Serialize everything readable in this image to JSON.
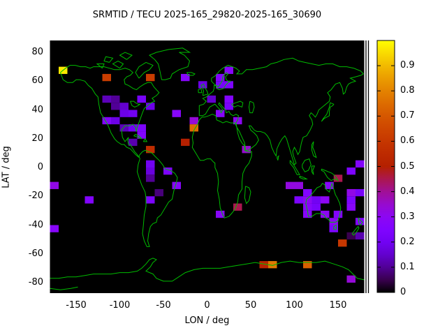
{
  "title": "SRMTID / TECU 2025-165_29820-2025-165_30690",
  "axes": {
    "x_label": "LON / deg",
    "y_label": "LAT / deg",
    "x_ticks": [
      -150,
      -100,
      -50,
      0,
      50,
      100,
      150
    ],
    "y_ticks": [
      80,
      60,
      40,
      20,
      0,
      -20,
      -40,
      -60,
      -80
    ],
    "xlim": [
      -180,
      180
    ],
    "ylim": [
      -88,
      88
    ]
  },
  "colorbar": {
    "min": 0,
    "max": 1,
    "tick_values": [
      0,
      0.1,
      0.2,
      0.3,
      0.4,
      0.5,
      0.6,
      0.7,
      0.8,
      0.9
    ],
    "tick_labels": [
      "0",
      "0.1",
      "0.2",
      "0.3",
      "0.4",
      "0.5",
      "0.6",
      "0.7",
      "0.8",
      "0.9"
    ]
  },
  "colors": {
    "background": "#ffffff",
    "plot_bg": "#000000",
    "coastline": "#00bb00",
    "text": "#000000"
  },
  "chart_data": {
    "type": "heatmap",
    "title": "SRMTID / TECU 2025-165_29820-2025-165_30690",
    "xlabel": "LON / deg",
    "ylabel": "LAT / deg",
    "xlim": [
      -180,
      180
    ],
    "ylim": [
      -90,
      90
    ],
    "legend_position": "right-colorbar",
    "grid": false,
    "basemap": "world-coastlines",
    "cell_deg": {
      "lon": 10,
      "lat": 5
    },
    "palette": "gnuplot default pm3d: R=sqrt(v), G=v^3, B=max(0,sin(2*pi*v))",
    "points": [
      {
        "lon": -165,
        "lat": 67.5,
        "v": 0.97
      },
      {
        "lon": -115,
        "lat": 62.5,
        "v": 0.62
      },
      {
        "lon": -65,
        "lat": 62.5,
        "v": 0.62
      },
      {
        "lon": -25,
        "lat": 62.5,
        "v": 0.28
      },
      {
        "lon": -115,
        "lat": 47.5,
        "v": 0.13
      },
      {
        "lon": -105,
        "lat": 47.5,
        "v": 0.1
      },
      {
        "lon": -75,
        "lat": 47.5,
        "v": 0.22
      },
      {
        "lon": -105,
        "lat": 42.5,
        "v": 0.1
      },
      {
        "lon": -95,
        "lat": 42.5,
        "v": 0.15
      },
      {
        "lon": -65,
        "lat": 42.5,
        "v": 0.18
      },
      {
        "lon": -95,
        "lat": 37.5,
        "v": 0.18
      },
      {
        "lon": -85,
        "lat": 37.5,
        "v": 0.2
      },
      {
        "lon": -115,
        "lat": 32.5,
        "v": 0.26
      },
      {
        "lon": -105,
        "lat": 32.5,
        "v": 0.18
      },
      {
        "lon": -95,
        "lat": 27.5,
        "v": 0.13
      },
      {
        "lon": -85,
        "lat": 27.5,
        "v": 0.2
      },
      {
        "lon": -75,
        "lat": 27.5,
        "v": 0.24
      },
      {
        "lon": -75,
        "lat": 22.5,
        "v": 0.26
      },
      {
        "lon": -85,
        "lat": 17.5,
        "v": 0.12
      },
      {
        "lon": -65,
        "lat": 12.5,
        "v": 0.56
      },
      {
        "lon": -65,
        "lat": 2.5,
        "v": 0.2
      },
      {
        "lon": -65,
        "lat": -2.5,
        "v": 0.17
      },
      {
        "lon": -65,
        "lat": -7.5,
        "v": 0.1
      },
      {
        "lon": -45,
        "lat": -2.5,
        "v": 0.24
      },
      {
        "lon": -35,
        "lat": -12.5,
        "v": 0.28
      },
      {
        "lon": -55,
        "lat": -17.5,
        "v": 0.08
      },
      {
        "lon": -65,
        "lat": -22.5,
        "v": 0.24
      },
      {
        "lon": -175,
        "lat": -12.5,
        "v": 0.32
      },
      {
        "lon": -135,
        "lat": -22.5,
        "v": 0.26
      },
      {
        "lon": -175,
        "lat": -42.5,
        "v": 0.28
      },
      {
        "lon": 25,
        "lat": 67.5,
        "v": 0.28
      },
      {
        "lon": 15,
        "lat": 62.5,
        "v": 0.26
      },
      {
        "lon": 15,
        "lat": 57.5,
        "v": 0.22
      },
      {
        "lon": 25,
        "lat": 57.5,
        "v": 0.24
      },
      {
        "lon": -5,
        "lat": 57.5,
        "v": 0.18
      },
      {
        "lon": 5,
        "lat": 47.5,
        "v": 0.15
      },
      {
        "lon": 25,
        "lat": 47.5,
        "v": 0.26
      },
      {
        "lon": 25,
        "lat": 42.5,
        "v": 0.22
      },
      {
        "lon": 15,
        "lat": 37.5,
        "v": 0.28
      },
      {
        "lon": 35,
        "lat": 32.5,
        "v": 0.3
      },
      {
        "lon": -35,
        "lat": 37.5,
        "v": 0.28
      },
      {
        "lon": -15,
        "lat": 32.5,
        "v": 0.34
      },
      {
        "lon": -15,
        "lat": 27.5,
        "v": 0.75
      },
      {
        "lon": -25,
        "lat": 17.5,
        "v": 0.5
      },
      {
        "lon": 45,
        "lat": 12.5,
        "v": 0.35
      },
      {
        "lon": 35,
        "lat": -27.5,
        "v": 0.45
      },
      {
        "lon": 15,
        "lat": -32.5,
        "v": 0.28
      },
      {
        "lon": 95,
        "lat": -12.5,
        "v": 0.33
      },
      {
        "lon": 105,
        "lat": -12.5,
        "v": 0.33
      },
      {
        "lon": 140,
        "lat": -12.5,
        "v": 0.28
      },
      {
        "lon": 150,
        "lat": -7.5,
        "v": 0.45
      },
      {
        "lon": 165,
        "lat": -2.5,
        "v": 0.24
      },
      {
        "lon": 175,
        "lat": 2.5,
        "v": 0.26
      },
      {
        "lon": 105,
        "lat": -22.5,
        "v": 0.24
      },
      {
        "lon": 115,
        "lat": -17.5,
        "v": 0.26
      },
      {
        "lon": 115,
        "lat": -22.5,
        "v": 0.3
      },
      {
        "lon": 125,
        "lat": -22.5,
        "v": 0.2
      },
      {
        "lon": 135,
        "lat": -22.5,
        "v": 0.3
      },
      {
        "lon": 115,
        "lat": -27.5,
        "v": 0.28
      },
      {
        "lon": 125,
        "lat": -27.5,
        "v": 0.22
      },
      {
        "lon": 115,
        "lat": -32.5,
        "v": 0.28
      },
      {
        "lon": 135,
        "lat": -32.5,
        "v": 0.3
      },
      {
        "lon": 150,
        "lat": -32.5,
        "v": 0.26
      },
      {
        "lon": 165,
        "lat": -17.5,
        "v": 0.32
      },
      {
        "lon": 175,
        "lat": -17.5,
        "v": 0.22
      },
      {
        "lon": 165,
        "lat": -22.5,
        "v": 0.24
      },
      {
        "lon": 165,
        "lat": -27.5,
        "v": 0.28
      },
      {
        "lon": 145,
        "lat": -37.5,
        "v": 0.3
      },
      {
        "lon": 175,
        "lat": -37.5,
        "v": 0.26
      },
      {
        "lon": 145,
        "lat": -42.5,
        "v": 0.24
      },
      {
        "lon": 165,
        "lat": -47.5,
        "v": 0.05
      },
      {
        "lon": 175,
        "lat": -47.5,
        "v": 0.12
      },
      {
        "lon": 155,
        "lat": -52.5,
        "v": 0.6
      },
      {
        "lon": 65,
        "lat": -67.5,
        "v": 0.52
      },
      {
        "lon": 75,
        "lat": -67.5,
        "v": 0.78
      },
      {
        "lon": 115,
        "lat": -67.5,
        "v": 0.72
      },
      {
        "lon": 165,
        "lat": -77.5,
        "v": 0.34
      }
    ]
  }
}
